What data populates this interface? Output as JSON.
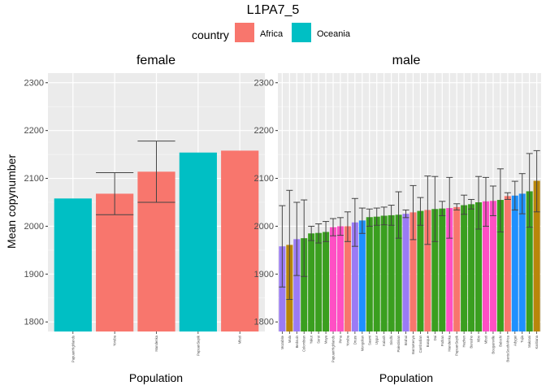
{
  "chart_data": {
    "type": "bar",
    "title": "L1PA7_5",
    "ylabel": "Mean copynumber",
    "xlabel": "Population",
    "ylim": [
      1780,
      2320
    ],
    "yticks": [
      1800,
      1900,
      2000,
      2100,
      2200,
      2300
    ],
    "legend": {
      "title": "country",
      "placement": "top",
      "entries": [
        {
          "label": "Africa",
          "color": "#F8766D"
        },
        {
          "label": "Oceania",
          "color": "#00BFC4"
        }
      ]
    },
    "panels": [
      {
        "name": "female",
        "bars": [
          {
            "category": "PapuanHighlands",
            "value": 2058,
            "color": "#00BFC4"
          },
          {
            "category": "Yoruba",
            "value": 2068,
            "err": [
              2024,
              2112
            ],
            "color": "#F8766D"
          },
          {
            "category": "Mandenka",
            "value": 2114,
            "err": [
              2050,
              2178
            ],
            "color": "#F8766D"
          },
          {
            "category": "PapuanSepik",
            "value": 2154,
            "color": "#00BFC4"
          },
          {
            "category": "Mbuti",
            "value": 2158,
            "color": "#F8766D"
          }
        ]
      },
      {
        "name": "male",
        "bars": [
          {
            "category": "Mozabite",
            "value": 1958,
            "err": [
              1873,
              2043
            ],
            "color": "#9A7BF5"
          },
          {
            "category": "Mala",
            "value": 1961,
            "err": [
              1847,
              2075
            ],
            "color": "#B8860B"
          },
          {
            "category": "Bedouin",
            "value": 1973,
            "err": [
              1897,
              2050
            ],
            "color": "#9A7BF5"
          },
          {
            "category": "Colombian",
            "value": 1975,
            "err": [
              1895,
              2055
            ],
            "color": "#3A9F1F"
          },
          {
            "category": "Yakut",
            "value": 1985,
            "err": [
              1970,
              2000
            ],
            "color": "#3A9F1F"
          },
          {
            "category": "Surui",
            "value": 1986,
            "err": [
              1965,
              2005
            ],
            "color": "#3A9F1F"
          },
          {
            "category": "Maya",
            "value": 1988,
            "err": [
              1968,
              2010
            ],
            "color": "#3A9F1F"
          },
          {
            "category": "PapuanHighlands",
            "value": 1998,
            "err": [
              1980,
              2016
            ],
            "color": "#FF4FC4"
          },
          {
            "category": "Pima",
            "value": 2000,
            "err": [
              1981,
              2018
            ],
            "color": "#FF4FC4"
          },
          {
            "category": "Yoruba",
            "value": 2000,
            "err": [
              1968,
              2030
            ],
            "color": "#F8766D"
          },
          {
            "category": "Druze",
            "value": 2008,
            "err": [
              1958,
              2058
            ],
            "color": "#9A7BF5"
          },
          {
            "category": "Mongolian",
            "value": 2012,
            "err": [
              1985,
              2038
            ],
            "color": "#1E90FF"
          },
          {
            "category": "Saami",
            "value": 2019,
            "err": [
              2000,
              2036
            ],
            "color": "#3A9F1F"
          },
          {
            "category": "Uygur",
            "value": 2020,
            "err": [
              2002,
              2038
            ],
            "color": "#3A9F1F"
          },
          {
            "category": "Kalash",
            "value": 2022,
            "err": [
              2003,
              2040
            ],
            "color": "#3A9F1F"
          },
          {
            "category": "Sindhi",
            "value": 2023,
            "err": [
              2002,
              2044
            ],
            "color": "#3A9F1F"
          },
          {
            "category": "Palestinian",
            "value": 2024,
            "err": [
              1975,
              2072
            ],
            "color": "#3A9F1F"
          },
          {
            "category": "Brahui",
            "value": 2026,
            "err": [
              2018,
              2034
            ],
            "color": "#9A7BF5"
          },
          {
            "category": "BantuKenya",
            "value": 2029,
            "err": [
              1972,
              2085
            ],
            "color": "#F8766D"
          },
          {
            "category": "Cambodian",
            "value": 2032,
            "err": [
              2002,
              2060
            ],
            "color": "#3A9F1F"
          },
          {
            "category": "Basque",
            "value": 2034,
            "err": [
              1962,
              2105
            ],
            "color": "#F8766D"
          },
          {
            "category": "Dai",
            "value": 2036,
            "err": [
              1968,
              2104
            ],
            "color": "#3A9F1F"
          },
          {
            "category": "Pathan",
            "value": 2037,
            "err": [
              2022,
              2052
            ],
            "color": "#3A9F1F"
          },
          {
            "category": "Mandenka",
            "value": 2038,
            "err": [
              1975,
              2102
            ],
            "color": "#FF4FC4"
          },
          {
            "category": "PapuanSepik",
            "value": 2040,
            "err": [
              2034,
              2047
            ],
            "color": "#F8766D"
          },
          {
            "category": "Hezhen",
            "value": 2044,
            "err": [
              2025,
              2065
            ],
            "color": "#3A9F1F"
          },
          {
            "category": "Burusho",
            "value": 2046,
            "err": [
              2036,
              2056
            ],
            "color": "#3A9F1F"
          },
          {
            "category": "Xibo",
            "value": 2050,
            "err": [
              1994,
              2104
            ],
            "color": "#3A9F1F"
          },
          {
            "category": "Mbuti",
            "value": 2052,
            "err": [
              2000,
              2102
            ],
            "color": "#FF4FC4"
          },
          {
            "category": "Bougainville",
            "value": 2053,
            "err": [
              2022,
              2084
            ],
            "color": "#FF4FC4"
          },
          {
            "category": "Balochi",
            "value": 2055,
            "err": [
              1988,
              2120
            ],
            "color": "#3A9F1F"
          },
          {
            "category": "BantuSouthAfrica",
            "value": 2063,
            "err": [
              2056,
              2070
            ],
            "color": "#F8766D"
          },
          {
            "category": "Adygei",
            "value": 2064,
            "err": [
              2034,
              2094
            ],
            "color": "#1E90FF"
          },
          {
            "category": "Tujia",
            "value": 2068,
            "err": [
              2026,
              2110
            ],
            "color": "#1E90FF"
          },
          {
            "category": "Makrani",
            "value": 2073,
            "err": [
              1998,
              2152
            ],
            "color": "#3A9F1F"
          },
          {
            "category": "Karitiana",
            "value": 2095,
            "err": [
              2030,
              2158
            ],
            "color": "#B8860B"
          }
        ]
      }
    ]
  }
}
